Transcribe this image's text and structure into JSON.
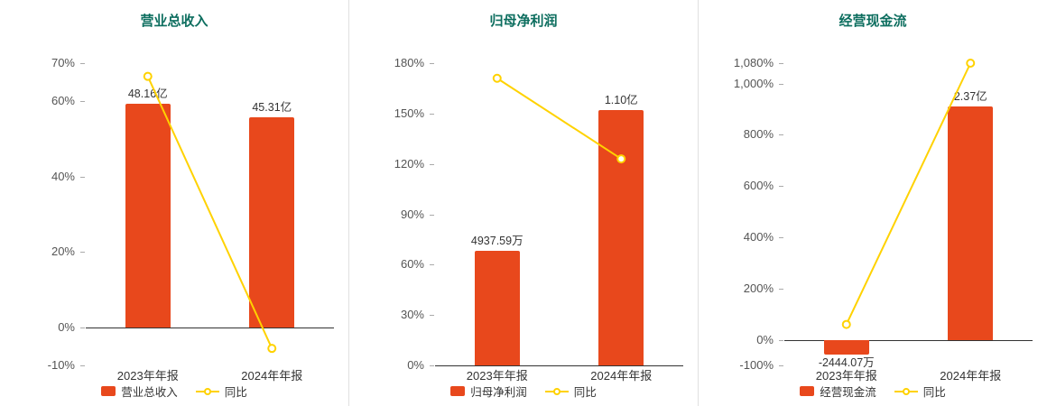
{
  "colors": {
    "bar": "#e8481c",
    "line": "#ffd200",
    "line_marker_fill": "#ffffff",
    "title": "#0d6e5f",
    "axis_text": "#555555",
    "label_text": "#333333",
    "zero_line": "#333333",
    "divider": "#e0e0e0",
    "background": "#ffffff"
  },
  "chart_data": [
    {
      "type": "bar",
      "title": "营业总收入",
      "categories": [
        "2023年年报",
        "2024年年报"
      ],
      "series": [
        {
          "kind": "bar",
          "name": "营业总收入",
          "values": [
            48.16,
            45.31
          ],
          "labels": [
            "48.16亿",
            "45.31亿"
          ]
        },
        {
          "kind": "line",
          "name": "同比",
          "values": [
            66.5,
            -5.5
          ]
        }
      ],
      "y_axis": {
        "min": -10,
        "max": 70,
        "tick_values": [
          70,
          60,
          40,
          20,
          0,
          -10
        ],
        "tick_labels": [
          "70%",
          "60%",
          "40%",
          "20%",
          "0%",
          "-10%"
        ]
      },
      "legend": [
        "营业总收入",
        "同比"
      ],
      "legend_position": "bottom"
    },
    {
      "type": "bar",
      "title": "归母净利润",
      "categories": [
        "2023年年报",
        "2024年年报"
      ],
      "series": [
        {
          "kind": "bar",
          "name": "归母净利润",
          "values": [
            0.493759,
            1.1
          ],
          "labels": [
            "4937.59万",
            "1.10亿"
          ]
        },
        {
          "kind": "line",
          "name": "同比",
          "values": [
            171,
            123
          ]
        }
      ],
      "y_axis": {
        "min": 0,
        "max": 180,
        "tick_values": [
          180,
          150,
          120,
          90,
          60,
          30,
          0
        ],
        "tick_labels": [
          "180%",
          "150%",
          "120%",
          "90%",
          "60%",
          "30%",
          "0%"
        ]
      },
      "legend": [
        "归母净利润",
        "同比"
      ],
      "legend_position": "bottom"
    },
    {
      "type": "bar",
      "title": "经营现金流",
      "categories": [
        "2023年年报",
        "2024年年报"
      ],
      "series": [
        {
          "kind": "bar",
          "name": "经营现金流",
          "values": [
            -0.244407,
            2.37
          ],
          "labels": [
            "-2444.07万",
            "2.37亿"
          ]
        },
        {
          "kind": "line",
          "name": "同比",
          "values": [
            60,
            1080
          ]
        }
      ],
      "y_axis": {
        "min": -100,
        "max": 1080,
        "tick_values": [
          1080,
          1000,
          800,
          600,
          400,
          200,
          0,
          -100
        ],
        "tick_labels": [
          "1,080%",
          "1,000%",
          "800%",
          "600%",
          "400%",
          "200%",
          "0%",
          "-100%"
        ]
      },
      "legend": [
        "经营现金流",
        "同比"
      ],
      "legend_position": "bottom"
    }
  ]
}
